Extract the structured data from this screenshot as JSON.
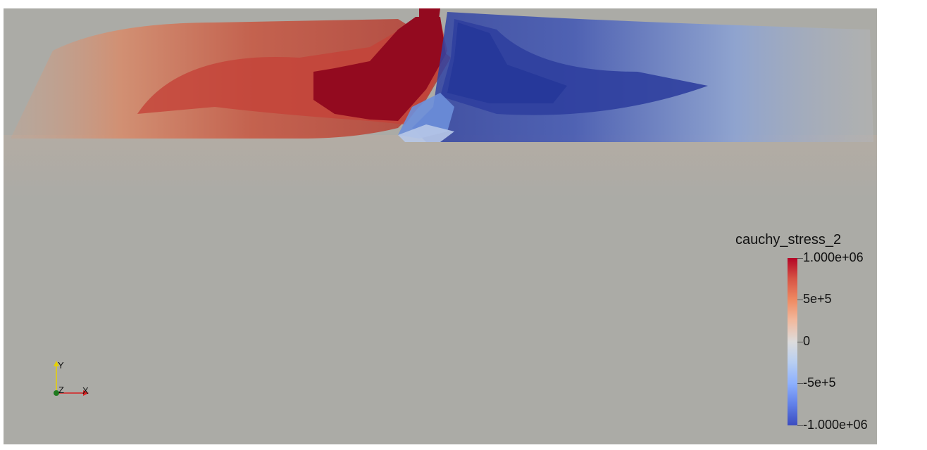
{
  "view": {
    "background_color": "#ababa6",
    "field_name": "cauchy_stress_2"
  },
  "colorbar": {
    "title": "cauchy_stress_2",
    "range": [
      -1000000,
      1000000
    ],
    "labels": {
      "max": "1.000e+06",
      "upper": "5e+5",
      "mid": "0",
      "lower": "-5e+5",
      "min": "-1.000e+06"
    },
    "colormap": "Cool to Warm",
    "colors": [
      "#3b4cc0",
      "#dddcdc",
      "#b40426"
    ]
  },
  "axes_triad": {
    "x_label": "X",
    "y_label": "Y",
    "z_label": "Z",
    "x_color": "#d62020",
    "y_color": "#e6d200",
    "z_color": "#1f7a1f"
  }
}
